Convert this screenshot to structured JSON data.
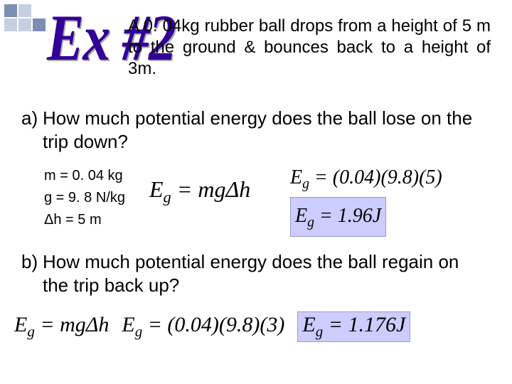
{
  "decoration": {
    "squares": [
      "dark",
      "light",
      "empty",
      "light",
      "light",
      "dark"
    ]
  },
  "example_label": "Ex #2",
  "problem": "A 0. 04kg rubber ball drops from a height of 5 m to the ground & bounces back to a height of 3m.",
  "part_a": {
    "marker": "a)",
    "question": "How much potential energy does the ball lose on the trip down?",
    "givens": {
      "mass": "m = 0. 04 kg",
      "gravity": "g = 9. 8 N/kg",
      "height": "Δh = 5 m"
    },
    "formula": {
      "lhs": "E",
      "sub": "g",
      "rhs": " = mgΔh"
    },
    "calc_line1": {
      "lhs": "E",
      "sub": "g",
      "rhs": " = (0.04)(9.8)(5)"
    },
    "calc_line2": {
      "lhs": "E",
      "sub": "g",
      "rhs": " = 1.96J"
    }
  },
  "part_b": {
    "marker": "b)",
    "question": "How much potential energy does the ball regain on the trip back up?",
    "formula": {
      "lhs": "E",
      "sub": "g",
      "rhs": " = mgΔh"
    },
    "calc": {
      "lhs": "E",
      "sub": "g",
      "rhs": " = (0.04)(9.8)(3)"
    },
    "result": {
      "lhs": "E",
      "sub": "g",
      "rhs": " = 1.176J"
    }
  },
  "colors": {
    "accent_text": "#330099",
    "highlight_bg": "#ccccff",
    "highlight_border": "#9999cc",
    "square_dark": "#7a8fb3",
    "square_light": "#c5d0e0"
  }
}
